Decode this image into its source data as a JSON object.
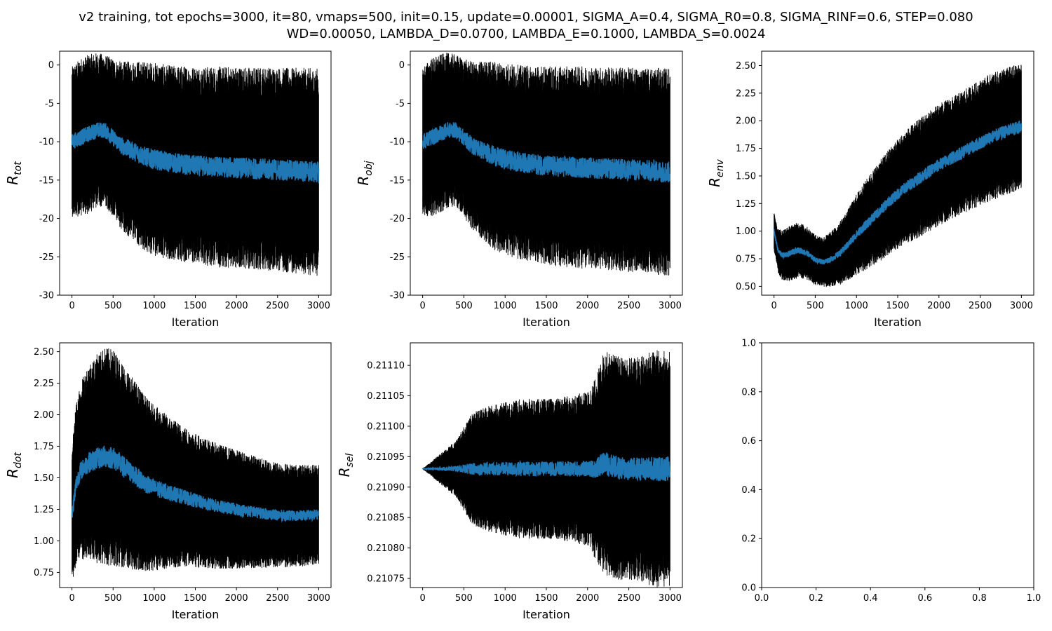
{
  "figure": {
    "title_line1": "v2 training, tot epochs=3000, it=80, vmaps=500, init=0.15, update=0.00001, SIGMA_A=0.4, SIGMA_R0=0.8, SIGMA_RINF=0.6, STEP=0.080",
    "title_line2": "WD=0.00050, LAMBDA_D=0.0700, LAMBDA_E=0.1000, LAMBDA_S=0.0024"
  },
  "colors": {
    "mean_line": "#1f77b4",
    "error_bars": "#000000",
    "axes": "#000000"
  },
  "chart_data": [
    {
      "type": "line",
      "xlabel": "Iteration",
      "ylabel_base": "R",
      "ylabel_sub": "tot",
      "xlim": [
        -150,
        3150
      ],
      "ylim": [
        -30,
        1.8
      ],
      "xticks": [
        0,
        500,
        1000,
        1500,
        2000,
        2500,
        3000
      ],
      "yticks": [
        -30,
        -25,
        -20,
        -15,
        -10,
        -5,
        0
      ],
      "error_bars": true,
      "series": [
        {
          "x": [
            0,
            100,
            200,
            300,
            400,
            500,
            600,
            700,
            800,
            900,
            1000,
            1200,
            1400,
            1600,
            1800,
            2000,
            2200,
            2400,
            2600,
            2800,
            3000
          ],
          "y": [
            -10,
            -9.5,
            -9,
            -8.5,
            -8.5,
            -9.5,
            -10.5,
            -11,
            -11.5,
            -12,
            -12.3,
            -12.7,
            -13,
            -13.2,
            -13.3,
            -13.4,
            -13.5,
            -13.6,
            -13.7,
            -13.8,
            -14
          ],
          "err": [
            8.5,
            9,
            9,
            8.8,
            8.6,
            9,
            9.5,
            10,
            10.5,
            10.8,
            11,
            11,
            11.2,
            11.3,
            11.4,
            11.5,
            11.5,
            11.6,
            11.6,
            11.7,
            11.8
          ]
        }
      ]
    },
    {
      "type": "line",
      "xlabel": "Iteration",
      "ylabel_base": "R",
      "ylabel_sub": "obj",
      "xlim": [
        -150,
        3150
      ],
      "ylim": [
        -30,
        1.8
      ],
      "xticks": [
        0,
        500,
        1000,
        1500,
        2000,
        2500,
        3000
      ],
      "yticks": [
        -30,
        -25,
        -20,
        -15,
        -10,
        -5,
        0
      ],
      "error_bars": true,
      "series": [
        {
          "x": [
            0,
            100,
            200,
            300,
            400,
            500,
            600,
            700,
            800,
            900,
            1000,
            1200,
            1400,
            1600,
            1800,
            2000,
            2200,
            2400,
            2600,
            2800,
            3000
          ],
          "y": [
            -10,
            -9.5,
            -9,
            -8.5,
            -8.5,
            -9.5,
            -10.5,
            -11,
            -11.5,
            -12,
            -12.3,
            -12.7,
            -13,
            -13.2,
            -13.3,
            -13.4,
            -13.5,
            -13.6,
            -13.7,
            -13.8,
            -14
          ],
          "err": [
            8.5,
            9,
            9,
            8.8,
            8.6,
            9,
            9.5,
            10,
            10.5,
            10.8,
            11,
            11,
            11.2,
            11.3,
            11.4,
            11.5,
            11.5,
            11.6,
            11.6,
            11.7,
            11.8
          ]
        }
      ]
    },
    {
      "type": "line",
      "xlabel": "Iteration",
      "ylabel_base": "R",
      "ylabel_sub": "env",
      "xlim": [
        -150,
        3150
      ],
      "ylim": [
        0.42,
        2.63
      ],
      "xticks": [
        0,
        500,
        1000,
        1500,
        2000,
        2500,
        3000
      ],
      "yticks": [
        0.5,
        0.75,
        1.0,
        1.25,
        1.5,
        1.75,
        2.0,
        2.25,
        2.5
      ],
      "ytick_labels": [
        "0.50",
        "0.75",
        "1.00",
        "1.25",
        "1.50",
        "1.75",
        "2.00",
        "2.25",
        "2.50"
      ],
      "error_bars": true,
      "series": [
        {
          "x": [
            0,
            50,
            100,
            200,
            300,
            400,
            500,
            600,
            700,
            800,
            900,
            1000,
            1200,
            1400,
            1600,
            1800,
            2000,
            2200,
            2400,
            2600,
            2800,
            3000
          ],
          "y": [
            1.0,
            0.82,
            0.78,
            0.8,
            0.83,
            0.8,
            0.74,
            0.72,
            0.75,
            0.8,
            0.88,
            0.97,
            1.12,
            1.27,
            1.4,
            1.5,
            1.6,
            1.68,
            1.76,
            1.84,
            1.9,
            1.95
          ],
          "err": [
            0.15,
            0.18,
            0.2,
            0.22,
            0.22,
            0.21,
            0.2,
            0.2,
            0.22,
            0.25,
            0.28,
            0.32,
            0.38,
            0.42,
            0.45,
            0.47,
            0.48,
            0.48,
            0.49,
            0.5,
            0.5,
            0.5
          ]
        }
      ]
    },
    {
      "type": "line",
      "xlabel": "Iteration",
      "ylabel_base": "R",
      "ylabel_sub": "dot",
      "xlim": [
        -150,
        3150
      ],
      "ylim": [
        0.63,
        2.57
      ],
      "xticks": [
        0,
        500,
        1000,
        1500,
        2000,
        2500,
        3000
      ],
      "yticks": [
        0.75,
        1.0,
        1.25,
        1.5,
        1.75,
        2.0,
        2.25,
        2.5
      ],
      "ytick_labels": [
        "0.75",
        "1.00",
        "1.25",
        "1.50",
        "1.75",
        "2.00",
        "2.25",
        "2.50"
      ],
      "error_bars": true,
      "series": [
        {
          "x": [
            0,
            50,
            100,
            200,
            300,
            400,
            500,
            600,
            700,
            800,
            900,
            1000,
            1200,
            1400,
            1600,
            1800,
            2000,
            2200,
            2400,
            2600,
            2800,
            3000
          ],
          "y": [
            1.2,
            1.45,
            1.55,
            1.62,
            1.65,
            1.67,
            1.66,
            1.6,
            1.55,
            1.5,
            1.45,
            1.42,
            1.38,
            1.34,
            1.3,
            1.27,
            1.25,
            1.23,
            1.21,
            1.2,
            1.2,
            1.21
          ],
          "err": [
            0.5,
            0.55,
            0.6,
            0.68,
            0.72,
            0.75,
            0.75,
            0.72,
            0.68,
            0.64,
            0.6,
            0.57,
            0.52,
            0.48,
            0.45,
            0.43,
            0.41,
            0.39,
            0.37,
            0.36,
            0.35,
            0.35
          ]
        }
      ]
    },
    {
      "type": "line",
      "xlabel": "Iteration",
      "ylabel_base": "R",
      "ylabel_sub": "sel",
      "xlim": [
        -150,
        3150
      ],
      "ylim": [
        0.210735,
        0.211137
      ],
      "xticks": [
        0,
        500,
        1000,
        1500,
        2000,
        2500,
        3000
      ],
      "yticks": [
        0.21075,
        0.2108,
        0.21085,
        0.2109,
        0.21095,
        0.211,
        0.21105,
        0.2111
      ],
      "ytick_labels": [
        "0.21075",
        "0.21080",
        "0.21085",
        "0.21090",
        "0.21095",
        "0.21100",
        "0.21105",
        "0.21110"
      ],
      "error_bars": true,
      "series": [
        {
          "x": [
            0,
            100,
            200,
            300,
            400,
            500,
            600,
            800,
            1000,
            1200,
            1400,
            1600,
            1800,
            2000,
            2100,
            2200,
            2400,
            2600,
            2800,
            3000
          ],
          "y": [
            0.21093,
            0.21093,
            0.21093,
            0.21093,
            0.21093,
            0.21093,
            0.21093,
            0.21093,
            0.21093,
            0.21093,
            0.21093,
            0.21093,
            0.21093,
            0.21093,
            0.21093,
            0.21094,
            0.21093,
            0.21093,
            0.21093,
            0.21093
          ],
          "err": [
            5e-07,
            1e-05,
            2e-05,
            3e-05,
            4e-05,
            6e-05,
            8e-05,
            9e-05,
            9.5e-05,
            0.0001,
            0.0001,
            0.0001,
            0.000105,
            0.00011,
            0.00013,
            0.00016,
            0.00016,
            0.00016,
            0.00017,
            0.00017
          ]
        }
      ]
    },
    {
      "type": "line",
      "xlabel": "",
      "ylabel_base": "",
      "ylabel_sub": "",
      "xlim": [
        0,
        1
      ],
      "ylim": [
        0,
        1
      ],
      "xticks": [
        0,
        0.2,
        0.4,
        0.6,
        0.8,
        1.0
      ],
      "xtick_labels": [
        "0.0",
        "0.2",
        "0.4",
        "0.6",
        "0.8",
        "1.0"
      ],
      "yticks": [
        0,
        0.2,
        0.4,
        0.6,
        0.8,
        1.0
      ],
      "ytick_labels": [
        "0.0",
        "0.2",
        "0.4",
        "0.6",
        "0.8",
        "1.0"
      ],
      "error_bars": false,
      "series": []
    }
  ]
}
